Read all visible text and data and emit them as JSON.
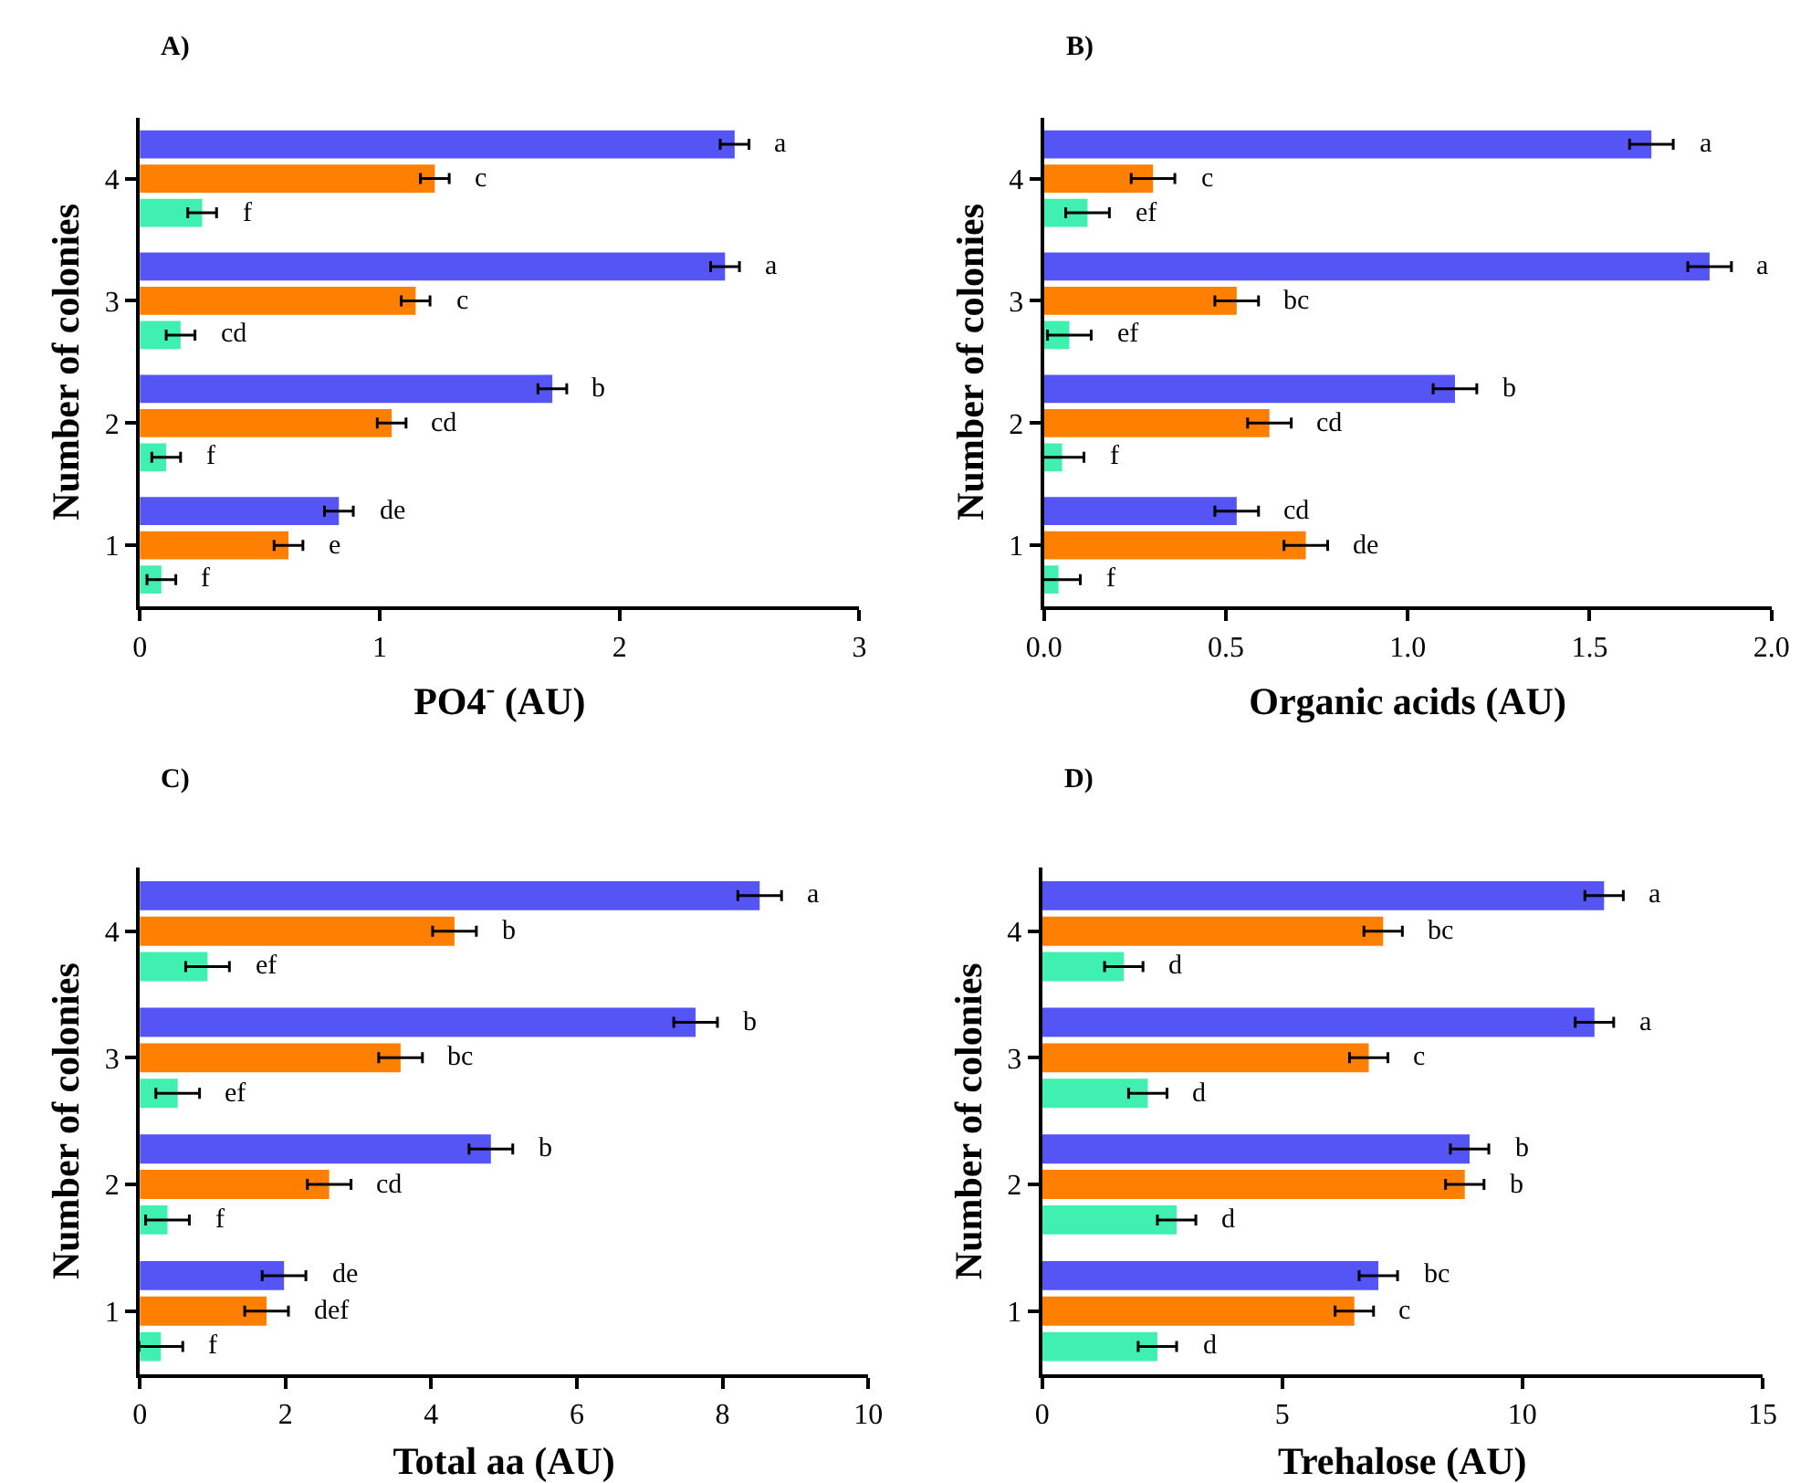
{
  "chart_data": [
    {
      "type": "bar",
      "orientation": "horizontal",
      "title": "A)",
      "xlabel": "PO4$^{-}$ (AU)",
      "ylabel": "Number of colonies",
      "categories": [
        "4",
        "3",
        "2",
        "1"
      ],
      "xlim": [
        0,
        3
      ],
      "xticks": [
        0,
        1,
        2,
        3
      ],
      "series": [
        {
          "color": "#5555f5",
          "values": [
            2.48,
            2.44,
            1.72,
            0.83
          ],
          "errors": [
            0.06,
            0.06,
            0.06,
            0.06
          ],
          "value_labels": [
            "a",
            "a",
            "b",
            "de"
          ]
        },
        {
          "color": "#ff7f00",
          "values": [
            1.23,
            1.15,
            1.05,
            0.62
          ],
          "errors": [
            0.06,
            0.06,
            0.06,
            0.06
          ],
          "value_labels": [
            "c",
            "c",
            "cd",
            "e"
          ]
        },
        {
          "color": "#40f0b0",
          "values": [
            0.26,
            0.17,
            0.11,
            0.09
          ],
          "errors": [
            0.06,
            0.06,
            0.06,
            0.06
          ],
          "value_labels": [
            "f",
            "cd",
            "f",
            "f"
          ]
        }
      ]
    },
    {
      "type": "bar",
      "orientation": "horizontal",
      "title": "B)",
      "xlabel": "Organic acids (AU)",
      "ylabel": "Number of colonies",
      "categories": [
        "4",
        "3",
        "2",
        "1"
      ],
      "xlim": [
        0,
        2
      ],
      "xticks": [
        {
          "value": 0,
          "label": "0.0"
        },
        0.5,
        {
          "value": 1,
          "label": "1.0"
        },
        1.5,
        {
          "value": 2,
          "label": "2.0"
        }
      ],
      "series": [
        {
          "color": "#5555f5",
          "values": [
            1.67,
            1.83,
            1.13,
            0.53
          ],
          "errors": [
            0.06,
            0.06,
            0.06,
            0.06
          ],
          "value_labels": [
            "a",
            "a",
            "b",
            "cd"
          ]
        },
        {
          "color": "#ff7f00",
          "values": [
            0.3,
            0.53,
            0.62,
            0.72
          ],
          "errors": [
            0.06,
            0.06,
            0.06,
            0.06
          ],
          "value_labels": [
            "c",
            "bc",
            "cd",
            "de"
          ]
        },
        {
          "color": "#40f0b0",
          "values": [
            0.12,
            0.07,
            0.05,
            0.04
          ],
          "errors": [
            0.06,
            0.06,
            0.06,
            0.06
          ],
          "value_labels": [
            "ef",
            "ef",
            "f",
            "f"
          ]
        }
      ]
    },
    {
      "type": "bar",
      "orientation": "horizontal",
      "title": "C)",
      "xlabel": "Total aa (AU)",
      "ylabel": "Number of colonies",
      "categories": [
        "4",
        "3",
        "2",
        "1"
      ],
      "xlim": [
        0,
        10
      ],
      "xticks": [
        0,
        2,
        4,
        6,
        8,
        10
      ],
      "series": [
        {
          "color": "#5555f5",
          "values": [
            8.51,
            7.63,
            4.82,
            1.98
          ],
          "errors": [
            0.3,
            0.3,
            0.3,
            0.3
          ],
          "value_labels": [
            "a",
            "b",
            "b",
            "de"
          ]
        },
        {
          "color": "#ff7f00",
          "values": [
            4.32,
            3.58,
            2.6,
            1.74
          ],
          "errors": [
            0.3,
            0.3,
            0.3,
            0.3
          ],
          "value_labels": [
            "b",
            "bc",
            "cd",
            "def"
          ]
        },
        {
          "color": "#40f0b0",
          "values": [
            0.93,
            0.52,
            0.38,
            0.29
          ],
          "errors": [
            0.3,
            0.3,
            0.3,
            0.3
          ],
          "value_labels": [
            "ef",
            "ef",
            "f",
            "f"
          ]
        }
      ]
    },
    {
      "type": "bar",
      "orientation": "horizontal",
      "title": "D)",
      "xlabel": "Trehalose (AU)",
      "ylabel": "Number of colonies",
      "categories": [
        "4",
        "3",
        "2",
        "1"
      ],
      "xlim": [
        0,
        15
      ],
      "xticks": [
        0,
        5,
        10,
        15
      ],
      "series": [
        {
          "color": "#5555f5",
          "values": [
            11.7,
            11.5,
            8.9,
            7.0
          ],
          "errors": [
            0.4,
            0.4,
            0.4,
            0.4
          ],
          "value_labels": [
            "a",
            "a",
            "b",
            "bc"
          ]
        },
        {
          "color": "#ff7f00",
          "values": [
            7.1,
            6.8,
            8.8,
            6.5
          ],
          "errors": [
            0.4,
            0.4,
            0.4,
            0.4
          ],
          "value_labels": [
            "bc",
            "c",
            "b",
            "c"
          ]
        },
        {
          "color": "#40f0b0",
          "values": [
            1.7,
            2.2,
            2.8,
            2.4
          ],
          "errors": [
            0.4,
            0.4,
            0.4,
            0.4
          ],
          "value_labels": [
            "d",
            "d",
            "d",
            "d"
          ]
        }
      ]
    }
  ]
}
